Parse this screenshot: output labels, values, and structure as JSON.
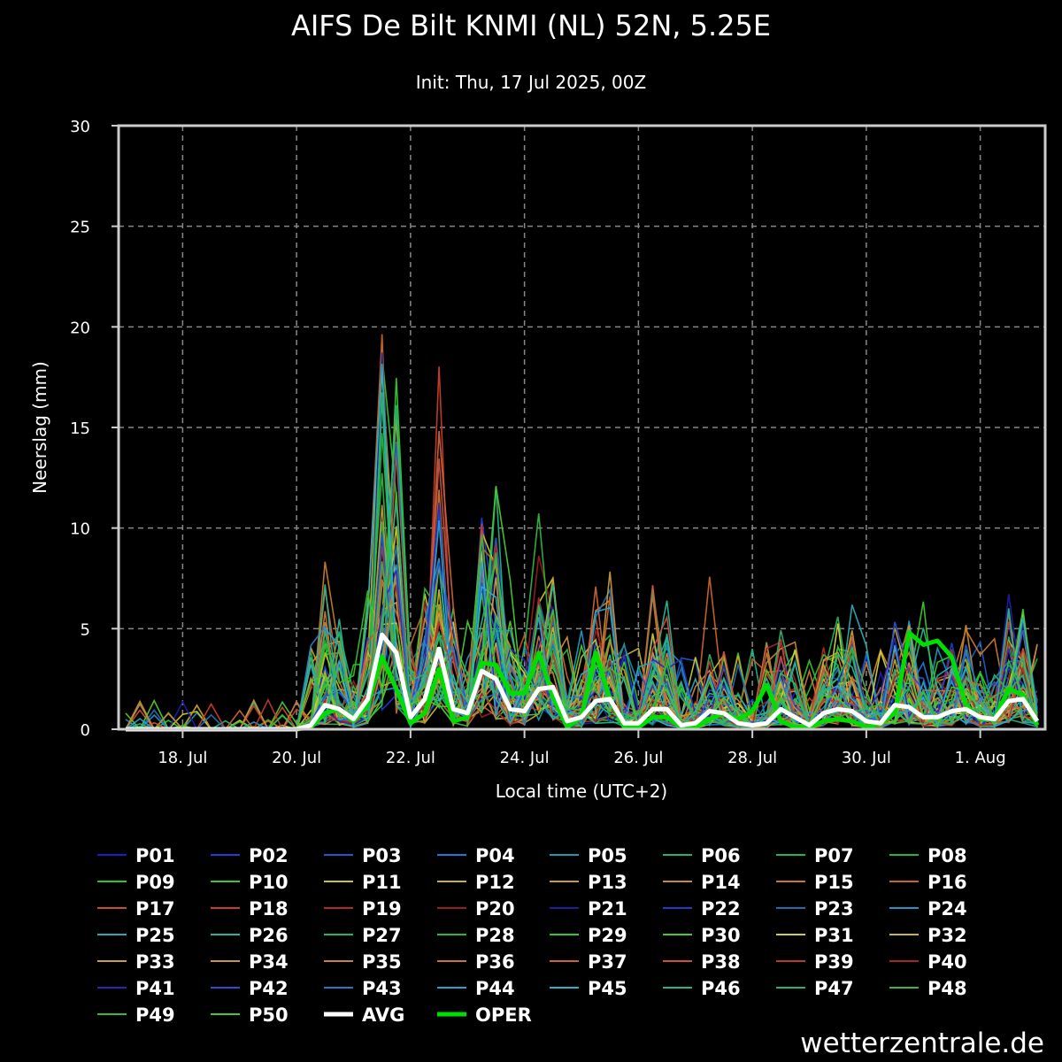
{
  "chart_data": {
    "type": "line",
    "title": "AIFS De Bilt KNMI (NL) 52N, 5.25E",
    "subtitle": "Init: Thu, 17 Jul 2025, 00Z",
    "xlabel": "Local time (UTC+2)",
    "ylabel": "Neerslag (mm)",
    "ylim": [
      0,
      30
    ],
    "yticks": [
      "0",
      "5",
      "10",
      "15",
      "20",
      "25",
      "30"
    ],
    "x_ticks": [
      "18. Jul",
      "20. Jul",
      "22. Jul",
      "24. Jul",
      "26. Jul",
      "28. Jul",
      "30. Jul",
      "1. Aug"
    ],
    "x_start": "2025-07-17 02:00",
    "x_step_hours": 6,
    "grid": true,
    "legend_position": "bottom",
    "source": "wetterzentrale.de",
    "series_highlight": [
      {
        "name": "AVG",
        "color": "#ffffff",
        "values": [
          0,
          0,
          0,
          0,
          0,
          0,
          0,
          0,
          0,
          0,
          0,
          0,
          0,
          0.2,
          1.2,
          1.0,
          0.5,
          1.5,
          4.7,
          3.8,
          0.6,
          1.5,
          4.0,
          1.0,
          0.8,
          2.9,
          2.5,
          1.0,
          0.9,
          2.0,
          2.1,
          0.4,
          0.6,
          1.4,
          1.5,
          0.3,
          0.3,
          1.0,
          1.0,
          0.2,
          0.3,
          0.9,
          0.8,
          0.3,
          0.2,
          0.3,
          1.0,
          0.6,
          0.2,
          0.8,
          1.0,
          0.9,
          0.4,
          0.3,
          1.2,
          1.1,
          0.6,
          0.6,
          0.9,
          1.0,
          0.6,
          0.5,
          1.4,
          1.5,
          0.4
        ]
      },
      {
        "name": "OPER",
        "color": "#00dd00",
        "values": [
          0,
          0,
          0,
          0,
          0,
          0,
          0,
          0,
          0,
          0,
          0,
          0,
          0,
          0.1,
          0.8,
          1.0,
          0.4,
          1.2,
          3.6,
          2.0,
          0.3,
          0.8,
          3.0,
          0.4,
          0.6,
          3.3,
          3.2,
          1.8,
          1.8,
          3.8,
          1.6,
          0.1,
          0.6,
          3.8,
          1.5,
          0.1,
          0.1,
          0.6,
          0.6,
          0.1,
          0.1,
          0.5,
          0.8,
          0.5,
          0.9,
          2.2,
          0.4,
          0.1,
          0.1,
          0.4,
          0.5,
          0.4,
          0.1,
          0.3,
          0.8,
          4.8,
          4.2,
          4.4,
          3.6,
          1.2,
          0.5,
          0.5,
          2.0,
          1.7,
          0.2
        ]
      }
    ],
    "series_highlight_labels": [
      "AVG",
      "OPER"
    ],
    "members": [
      {
        "name": "P01",
        "color": "#1c1cc8"
      },
      {
        "name": "P02",
        "color": "#1c3cdc"
      },
      {
        "name": "P03",
        "color": "#1e5ac8"
      },
      {
        "name": "P04",
        "color": "#1e78dc"
      },
      {
        "name": "P05",
        "color": "#1e96b4"
      },
      {
        "name": "P06",
        "color": "#1eb478"
      },
      {
        "name": "P07",
        "color": "#1eb45a"
      },
      {
        "name": "P08",
        "color": "#28b43c"
      },
      {
        "name": "P09",
        "color": "#28c828"
      },
      {
        "name": "P10",
        "color": "#3cc828"
      },
      {
        "name": "P11",
        "color": "#c8c828"
      },
      {
        "name": "P12",
        "color": "#c8b428"
      },
      {
        "name": "P13",
        "color": "#c8a028"
      },
      {
        "name": "P14",
        "color": "#c88c28"
      },
      {
        "name": "P15",
        "color": "#c87828"
      },
      {
        "name": "P16",
        "color": "#c86428"
      },
      {
        "name": "P17",
        "color": "#c85028"
      },
      {
        "name": "P18",
        "color": "#c83c28"
      },
      {
        "name": "P19",
        "color": "#b42828"
      },
      {
        "name": "P20",
        "color": "#961e1e"
      },
      {
        "name": "P21",
        "color": "#1e1ea0"
      },
      {
        "name": "P22",
        "color": "#1e3cc8"
      },
      {
        "name": "P23",
        "color": "#1e6eb4"
      },
      {
        "name": "P24",
        "color": "#1e96c8"
      },
      {
        "name": "P25",
        "color": "#28aab4"
      },
      {
        "name": "P26",
        "color": "#28b496"
      },
      {
        "name": "P27",
        "color": "#28b464"
      },
      {
        "name": "P28",
        "color": "#32b43c"
      },
      {
        "name": "P29",
        "color": "#32c832"
      },
      {
        "name": "P30",
        "color": "#50c828"
      },
      {
        "name": "P31",
        "color": "#d2d23c"
      },
      {
        "name": "P32",
        "color": "#c8b43c"
      },
      {
        "name": "P33",
        "color": "#c8a03c"
      },
      {
        "name": "P34",
        "color": "#c8963c"
      },
      {
        "name": "P35",
        "color": "#c8823c"
      },
      {
        "name": "P36",
        "color": "#c8733c"
      },
      {
        "name": "P37",
        "color": "#c8643c"
      },
      {
        "name": "P38",
        "color": "#c8503c"
      },
      {
        "name": "P39",
        "color": "#b43c32"
      },
      {
        "name": "P40",
        "color": "#a02828"
      },
      {
        "name": "P41",
        "color": "#2828b4"
      },
      {
        "name": "P42",
        "color": "#2850d2"
      },
      {
        "name": "P43",
        "color": "#2878c8"
      },
      {
        "name": "P44",
        "color": "#28a0d2"
      },
      {
        "name": "P45",
        "color": "#28b4c8"
      },
      {
        "name": "P46",
        "color": "#28b48c"
      },
      {
        "name": "P47",
        "color": "#28b46e"
      },
      {
        "name": "P48",
        "color": "#3cb450"
      },
      {
        "name": "P49",
        "color": "#32be32"
      },
      {
        "name": "P50",
        "color": "#46c832"
      }
    ]
  }
}
